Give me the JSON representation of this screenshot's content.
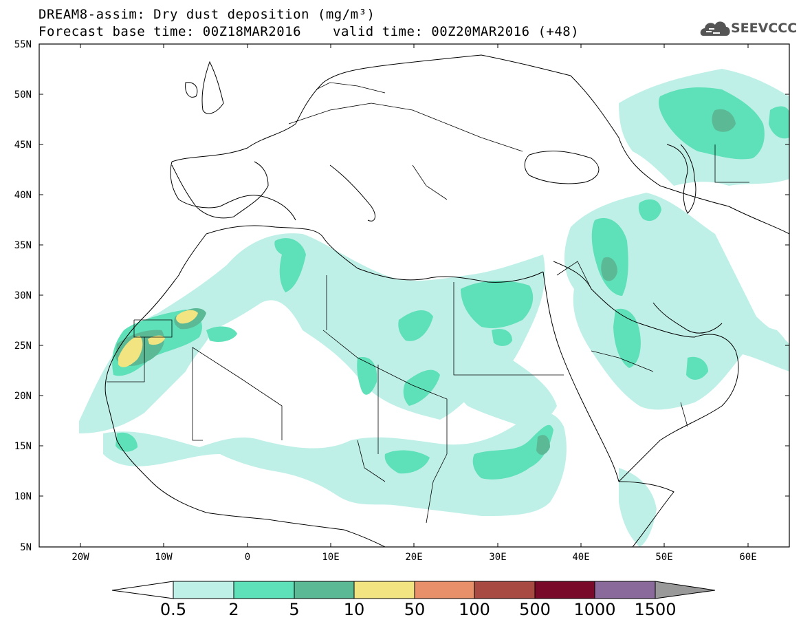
{
  "header": {
    "title": "DREAM8-assim: Dry dust deposition (mg/m³)",
    "base_time": "Forecast base time: 00Z18MAR2016",
    "valid_time": "valid time: 00Z20MAR2016 (+48)",
    "logo_text": "SEEVCCC"
  },
  "map": {
    "lat_labels": [
      "55N",
      "50N",
      "45N",
      "40N",
      "35N",
      "30N",
      "25N",
      "20N",
      "15N",
      "10N",
      "5N"
    ],
    "lon_labels": [
      "20W",
      "10W",
      "0",
      "10E",
      "20E",
      "30E",
      "40E",
      "50E",
      "60E"
    ],
    "extent": {
      "lon_min": -25,
      "lon_max": 65,
      "lat_min": 5,
      "lat_max": 55
    }
  },
  "legend": {
    "labels": [
      "0.5",
      "2",
      "5",
      "10",
      "50",
      "100",
      "500",
      "1000",
      "1500"
    ],
    "colors": [
      "#bff0e8",
      "#5ee0b8",
      "#5bb995",
      "#f2e480",
      "#e8906a",
      "#a84a42",
      "#7a0a2a",
      "#8a6a9a",
      "#999999"
    ]
  },
  "colors": {
    "c1": "#bff0e8",
    "c2": "#5ee0b8",
    "c3": "#5bb995",
    "c4": "#f2e480"
  }
}
